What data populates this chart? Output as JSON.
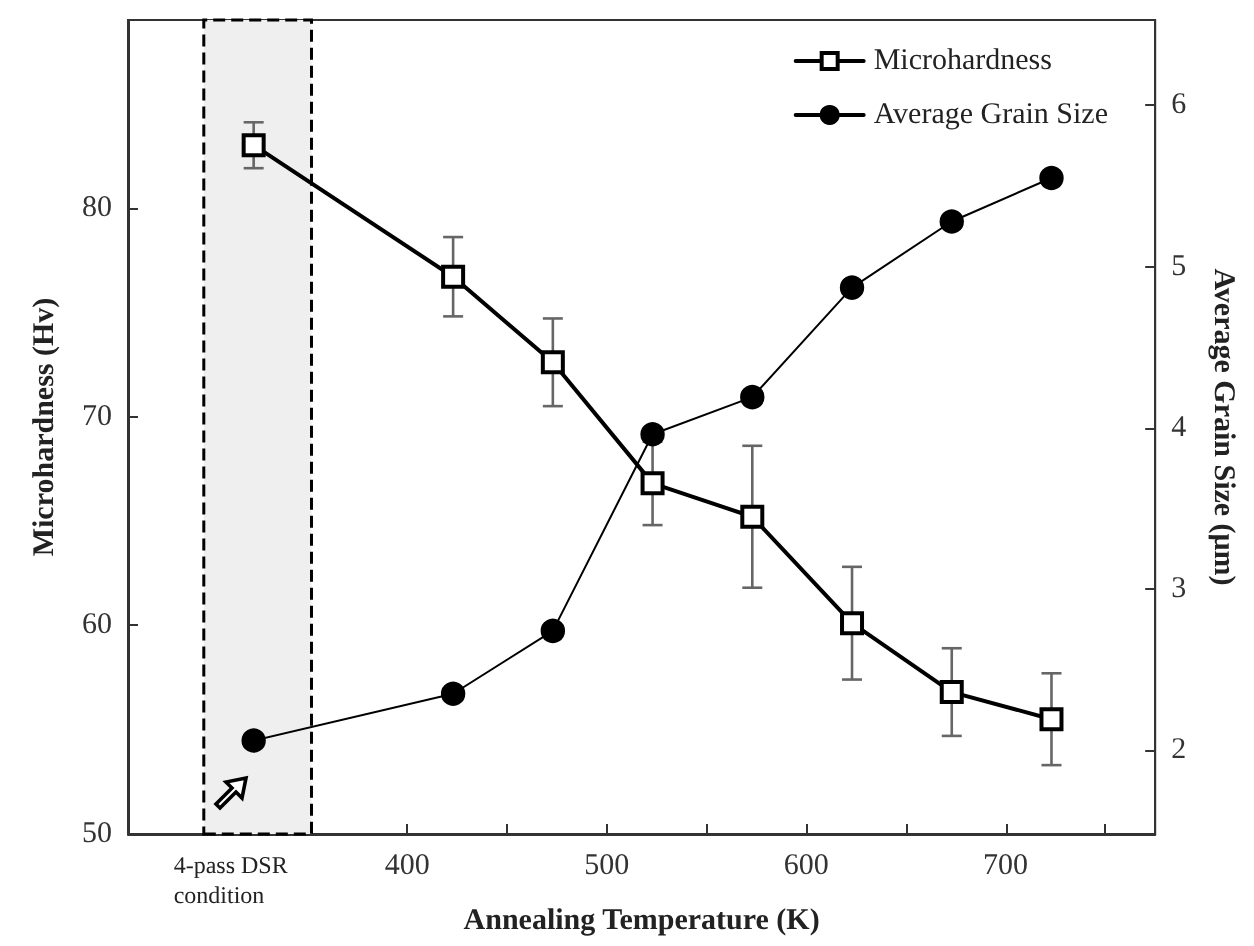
{
  "chart_data": {
    "type": "line",
    "xlabel": "Annealing Temperature (K)",
    "ylabel": "Microhardness (Hv)",
    "y2label": "Average Grain Size (μm)",
    "x": [
      323,
      423,
      473,
      523,
      573,
      623,
      673,
      723
    ],
    "series": [
      {
        "name": "Microhardness",
        "color": "#000000",
        "marker": "square",
        "values": [
          83.0,
          76.7,
          72.6,
          66.8,
          65.2,
          60.1,
          56.8,
          55.5
        ],
        "errors": [
          1.1,
          1.9,
          2.1,
          2.0,
          3.4,
          2.7,
          2.1,
          2.2
        ]
      },
      {
        "name": "Average Grain Size",
        "color": "#000000",
        "marker": "circle",
        "axis": "y2",
        "values": [
          2.06,
          2.35,
          2.74,
          3.96,
          4.19,
          4.87,
          5.28,
          5.55
        ]
      }
    ],
    "xlim": [
      260,
      775
    ],
    "xticks": [
      400,
      {
        "value": 450,
        "label": null
      },
      500,
      {
        "value": 550,
        "label": null
      },
      600,
      {
        "value": 650,
        "label": null
      },
      700,
      {
        "value": 750,
        "label": null
      }
    ],
    "ylim": [
      50,
      89
    ],
    "yticks": [
      50,
      60,
      70,
      80
    ],
    "y2lim": [
      1.48,
      6.53
    ],
    "y2ticks": [
      2,
      3,
      4,
      5,
      6
    ],
    "bands": [
      {
        "axis": "x",
        "from": 298,
        "to": 352,
        "color": "#efefef"
      }
    ],
    "annotations": [
      "4-pass DSR condition"
    ],
    "legend": "top right",
    "grid": false,
    "line_style": "solid"
  }
}
